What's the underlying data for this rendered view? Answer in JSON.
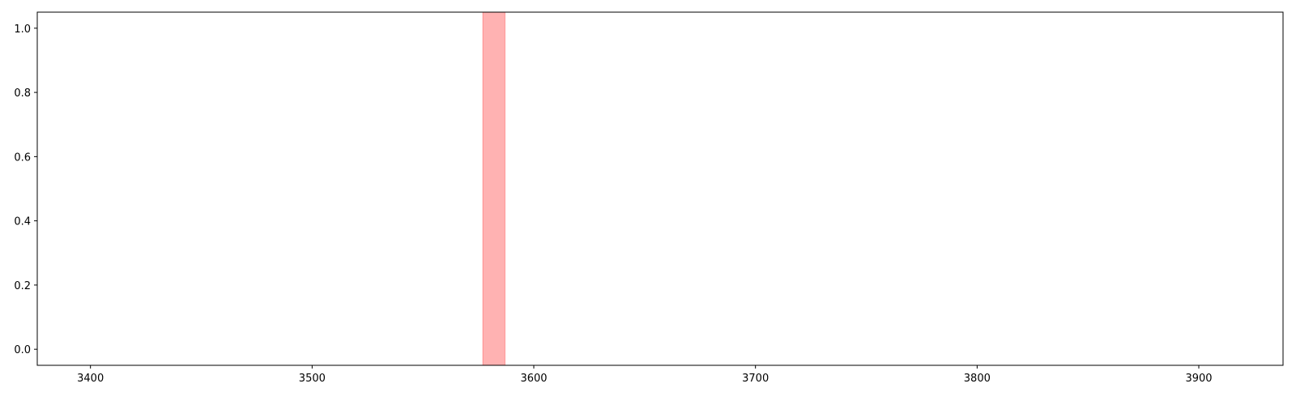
{
  "chart_data": {
    "type": "area",
    "title": "",
    "xlabel": "",
    "ylabel": "",
    "xlim": [
      3376,
      3938
    ],
    "ylim": [
      -0.05,
      1.05
    ],
    "x_ticks": [
      3400,
      3500,
      3600,
      3700,
      3800,
      3900
    ],
    "y_ticks": [
      0.0,
      0.2,
      0.4,
      0.6,
      0.8,
      1.0
    ],
    "x_tick_labels": [
      "3400",
      "3500",
      "3600",
      "3700",
      "3800",
      "3900"
    ],
    "y_tick_labels": [
      "0.0",
      "0.2",
      "0.4",
      "0.6",
      "0.8",
      "1.0"
    ],
    "grid": false,
    "legend": "none",
    "spans": [
      {
        "x_start": 3577,
        "x_end": 3587,
        "color": "#ff0000",
        "alpha": 0.3
      }
    ]
  }
}
